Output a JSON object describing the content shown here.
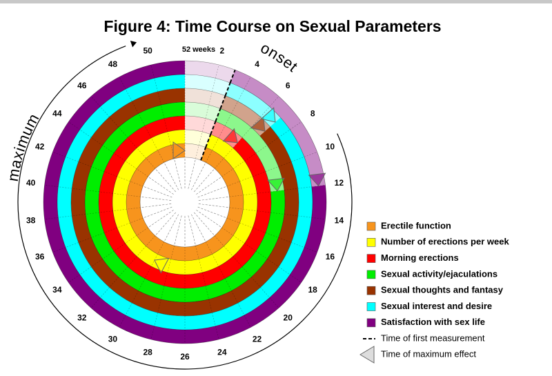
{
  "chart_data": {
    "type": "radial-time",
    "title": "Figure 4: Time Course on Sexual Parameters",
    "maximum_label": "maximum",
    "onset_label": "onset",
    "xlim": [
      0,
      52
    ],
    "xticks": [
      2,
      4,
      6,
      8,
      10,
      12,
      14,
      16,
      18,
      20,
      22,
      24,
      26,
      28,
      30,
      32,
      34,
      36,
      38,
      40,
      42,
      44,
      46,
      48,
      50,
      {
        "value": 52,
        "label": "52 weeks"
      }
    ],
    "series": [
      {
        "name": "Erectile function",
        "color": "#f7941d",
        "onset": 3,
        "maximum": 52
      },
      {
        "name": "Number of erections per week",
        "color": "#ffff00",
        "onset": 3,
        "maximum": 30
      },
      {
        "name": "Morning erections",
        "color": "#ff0000",
        "onset": 3,
        "maximum": 6
      },
      {
        "name": "Sexual activity/ejaculations",
        "color": "#00ee00",
        "onset": 3,
        "maximum": 12
      },
      {
        "name": "Sexual thoughts and fantasy",
        "color": "#993300",
        "onset": 3,
        "maximum": 7
      },
      {
        "name": "Sexual interest and desire",
        "color": "#00ffff",
        "onset": 3,
        "maximum": 7
      },
      {
        "name": "Satisfaction with sex life",
        "color": "#800080",
        "onset": 3,
        "maximum": 12
      }
    ],
    "onset_legend": "Time of first measurement",
    "maximum_legend": "Time of maximum effect"
  }
}
